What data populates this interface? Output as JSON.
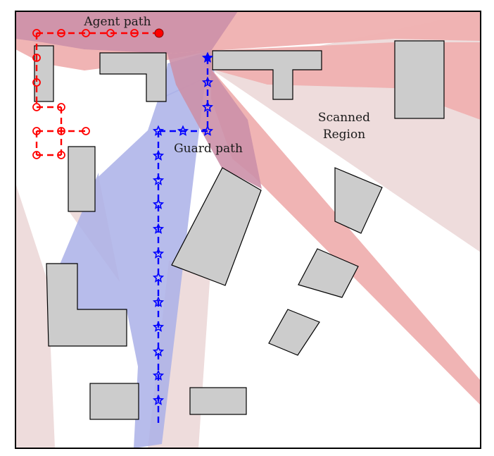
{
  "labels": {
    "agent_path": "Agent path",
    "guard_path": "Guard path",
    "scanned_region_line1": "Scanned",
    "scanned_region_line2": "Region"
  },
  "colors": {
    "agent": "#ff0000",
    "guard": "#0000ff",
    "scan_light": "#eedcdc",
    "scan_dark": "#efb0b0",
    "guard_vision": "#aab0e8",
    "agent_vision": "#cc90a8",
    "obstacle_fill": "#cccccc",
    "obstacle_stroke": "#000000"
  }
}
